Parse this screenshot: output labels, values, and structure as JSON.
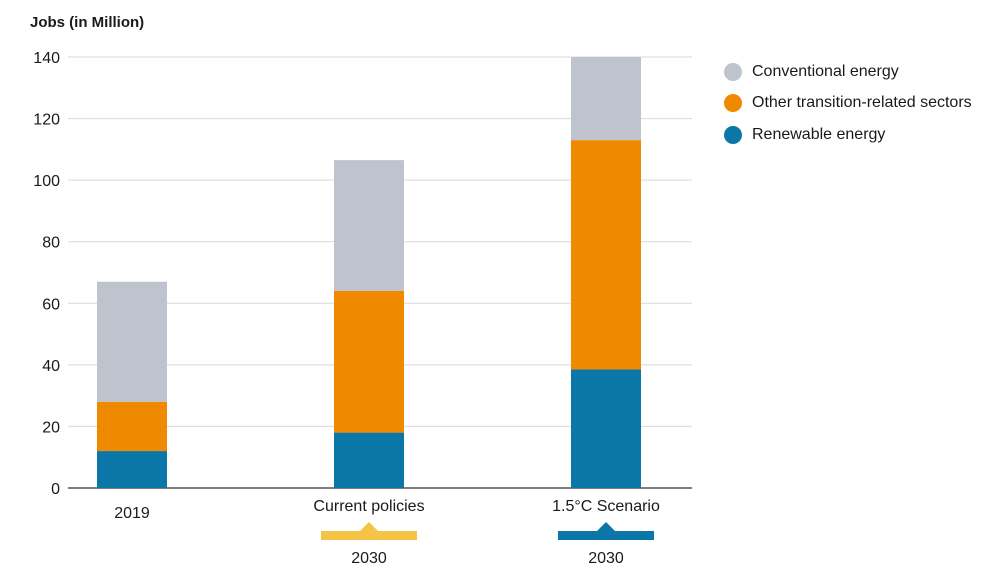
{
  "chart_data": {
    "type": "bar",
    "stacked": true,
    "ylabel": "Jobs (in Million)",
    "ylim": [
      0,
      140
    ],
    "yticks": [
      0,
      20,
      40,
      60,
      80,
      100,
      120,
      140
    ],
    "grid": true,
    "categories": [
      {
        "label": "2019",
        "year": ""
      },
      {
        "label": "Current policies",
        "year": "2030"
      },
      {
        "label": "1.5°C Scenario",
        "year": "2030"
      }
    ],
    "series": [
      {
        "name": "Renewable energy",
        "color": "#0a77a8",
        "values": [
          12,
          18,
          38.5
        ]
      },
      {
        "name": "Other transition-related sectors",
        "color": "#ef8a00",
        "values": [
          16,
          46,
          74.5
        ]
      },
      {
        "name": "Conventional energy",
        "color": "#bfc3cd",
        "values": [
          39,
          42.5,
          27
        ]
      }
    ],
    "legend_order": [
      "Conventional energy",
      "Other transition-related sectors",
      "Renewable energy"
    ],
    "scenario_markers": [
      {
        "category": "Current policies",
        "color": "#f5c446"
      },
      {
        "category": "1.5°C Scenario",
        "color": "#0a77a8"
      }
    ]
  }
}
